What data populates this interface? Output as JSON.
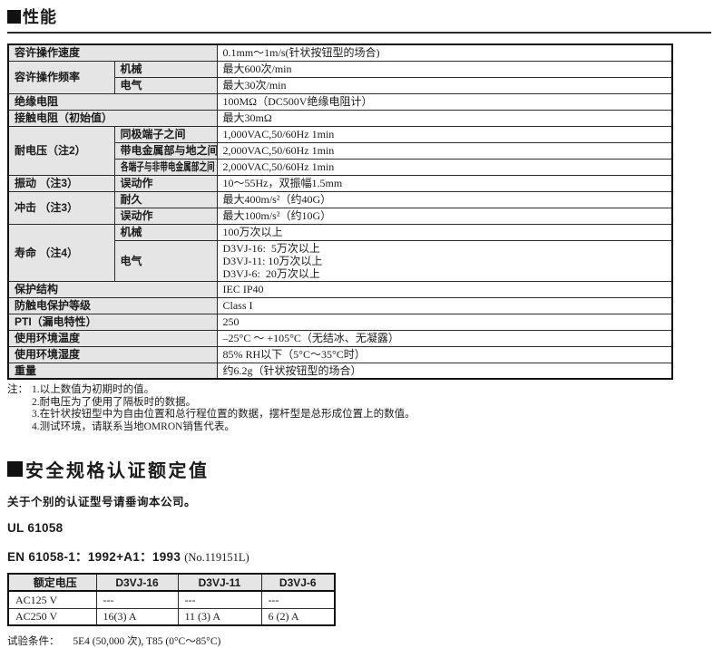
{
  "colors": {
    "label_cell_bg": "#e5e5e5",
    "table_border": "#1a1a1a",
    "text": "#1a1a1a"
  },
  "icons": {
    "section_marker": "filled-black-square"
  },
  "performance": {
    "title": "性能",
    "rows": [
      {
        "label": "容许操作速度",
        "value": "0.1mm～1m/s(针状按钮型的场合)"
      },
      {
        "label": "容许操作频率",
        "sub": "机械",
        "value": "最大600次/min"
      },
      {
        "sub": "电气",
        "value": "最大30次/min"
      },
      {
        "label": "绝缘电阻",
        "value": "100MΩ（DC500V绝缘电阻计）"
      },
      {
        "label": "接触电阻（初始值）",
        "value": "最大30mΩ"
      },
      {
        "label": "耐电压（注2）",
        "sub": "同极端子之间",
        "value": "1,000VAC,50/60Hz 1min"
      },
      {
        "sub": "带电金属部与地之间",
        "value": "2,000VAC,50/60Hz 1min"
      },
      {
        "sub": "各端子与非带电金属部之间",
        "value": "2,000VAC,50/60Hz 1min"
      },
      {
        "label": "振动 （注3）",
        "sub": "误动作",
        "value": "10～55Hz，双振幅1.5mm"
      },
      {
        "label": "冲击 （注3）",
        "sub": "耐久",
        "value": "最大400m/s²（约40G）"
      },
      {
        "sub": "误动作",
        "value": "最大100m/s²（约10G）"
      },
      {
        "label": "寿命 （注4）",
        "sub": "机械",
        "value": "100万次以上"
      },
      {
        "sub": "电气",
        "value_lines": [
          "D3VJ-16:  5万次以上",
          "D3VJ-11: 10万次以上",
          "D3VJ-6:  20万次以上"
        ]
      },
      {
        "label": "保护结构",
        "value": "IEC IP40"
      },
      {
        "label": "防触电保护等级",
        "value": "Class I"
      },
      {
        "label": "PTI（漏电特性）",
        "value": "250"
      },
      {
        "label": "使用环境温度",
        "value": "–25°C ～ +105°C（无结冰、无凝露）"
      },
      {
        "label": "使用环境湿度",
        "value": "85% RH以下（5°C～35°C时）"
      },
      {
        "label": "重量",
        "value": "约6.2g（针状按钮型的场合）"
      }
    ]
  },
  "notes": {
    "prefix": "注：",
    "items": [
      "1.以上数值为初期时的值。",
      "2.耐电压为了使用了隔板时的数据。",
      "3.在针状按钮型中为自由位置和总行程位置的数据，摆杆型是总形成位置上的数值。",
      "4.测试环境，请联系当地OMRON销售代表。"
    ]
  },
  "safety": {
    "title": "安全规格认证额定值",
    "intro": "关于个别的认证型号请垂询本公司。",
    "ul_standard": "UL 61058",
    "en_standard": "EN 61058-1：1992+A1：1993",
    "en_cert_no": "(No.119151L)",
    "ratings_table": {
      "headers": [
        "额定电压",
        "D3VJ-16",
        "D3VJ-11",
        "D3VJ-6"
      ],
      "rows": [
        {
          "voltage": "AC125 V",
          "values": [
            "---",
            "---",
            "---"
          ]
        },
        {
          "voltage": "AC250 V",
          "values": [
            "16(3) A",
            "11 (3) A",
            "6 (2) A"
          ]
        }
      ]
    },
    "test_conditions_label": "试验条件：",
    "test_conditions_value": "5E4 (50,000 次), T85 (0°C～85°C)"
  }
}
